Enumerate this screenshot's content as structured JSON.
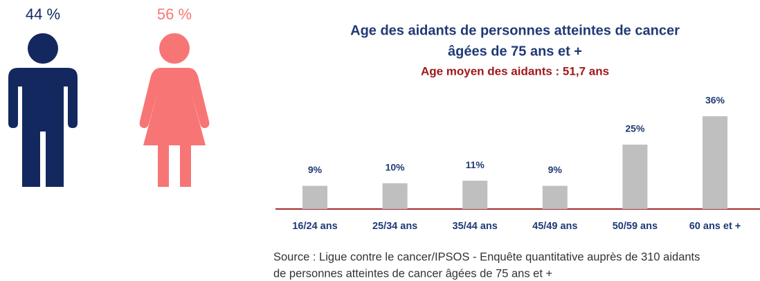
{
  "chart_data": [
    {
      "type": "pictogram",
      "values": [
        44,
        56
      ],
      "value_labels": [
        "44 %",
        "56 %"
      ],
      "colors": [
        "#13285e",
        "#f87575"
      ]
    },
    {
      "type": "bar",
      "title": [
        "Age des aidants de personnes atteintes de cancer",
        "âgées de 75 ans et +"
      ],
      "subtitle": "Age moyen des aidants : 51,7 ans",
      "categories": [
        "16/24 ans",
        "25/34 ans",
        "35/44 ans",
        "45/49 ans",
        "50/59 ans",
        "60 ans et +"
      ],
      "values": [
        9,
        10,
        11,
        9,
        25,
        36
      ],
      "value_labels": [
        "9%",
        "10%",
        "11%",
        "9%",
        "25%",
        "36%"
      ],
      "color": "#bfbfbf"
    }
  ],
  "source": [
    "Source : Ligue contre le cancer/IPSOS - Enquête quantitative auprès de 310 aidants",
    "de personnes atteintes de cancer âgées de 75 ans et +"
  ]
}
